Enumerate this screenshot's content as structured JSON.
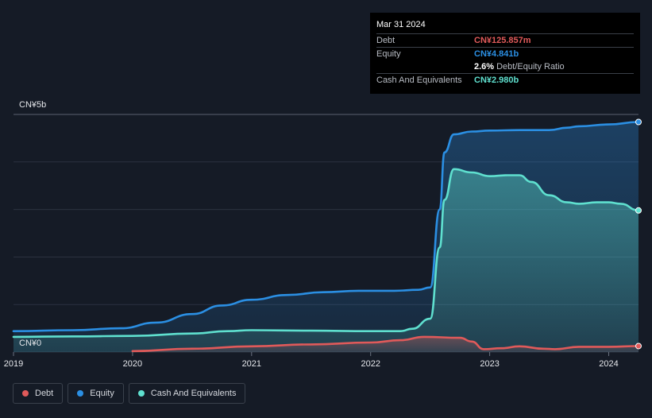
{
  "tooltip": {
    "date": "Mar 31 2024",
    "debt_label": "Debt",
    "debt_value": "CN¥125.857m",
    "equity_label": "Equity",
    "equity_value": "CN¥4.841b",
    "ratio_value": "2.6%",
    "ratio_label": "Debt/Equity Ratio",
    "cash_label": "Cash And Equivalents",
    "cash_value": "CN¥2.980b"
  },
  "legend": [
    {
      "label": "Debt",
      "color": "#e05a5a"
    },
    {
      "label": "Equity",
      "color": "#2b8fe3"
    },
    {
      "label": "Cash And Equivalents",
      "color": "#5fe0cf"
    }
  ],
  "colors": {
    "debt": "#e05a5a",
    "equity": "#2b8fe3",
    "cash": "#5fe0cf"
  },
  "chart_data": {
    "type": "area",
    "title": "",
    "xlabel": "",
    "ylabel": "",
    "y_top_label": "CN¥5b",
    "y_bottom_label": "CN¥0",
    "xlim": [
      2019,
      2024.25
    ],
    "ylim": [
      0,
      5
    ],
    "grid": true,
    "x_ticks": [
      {
        "value": 2019,
        "label": "2019"
      },
      {
        "value": 2020,
        "label": "2020"
      },
      {
        "value": 2021,
        "label": "2021"
      },
      {
        "value": 2022,
        "label": "2022"
      },
      {
        "value": 2023,
        "label": "2023"
      },
      {
        "value": 2024,
        "label": "2024"
      }
    ],
    "y_gridlines": [
      0,
      1,
      2,
      3,
      4,
      5
    ],
    "series": [
      {
        "key": "equity",
        "name": "Equity",
        "points": [
          [
            2019.0,
            0.44
          ],
          [
            2019.5,
            0.46
          ],
          [
            2019.9,
            0.5
          ],
          [
            2020.2,
            0.62
          ],
          [
            2020.5,
            0.8
          ],
          [
            2020.75,
            0.98
          ],
          [
            2021.0,
            1.1
          ],
          [
            2021.3,
            1.2
          ],
          [
            2021.6,
            1.26
          ],
          [
            2021.9,
            1.29
          ],
          [
            2022.2,
            1.29
          ],
          [
            2022.4,
            1.31
          ],
          [
            2022.5,
            1.36
          ],
          [
            2022.58,
            3.0
          ],
          [
            2022.62,
            4.2
          ],
          [
            2022.7,
            4.58
          ],
          [
            2022.85,
            4.64
          ],
          [
            2023.0,
            4.66
          ],
          [
            2023.25,
            4.67
          ],
          [
            2023.5,
            4.67
          ],
          [
            2023.65,
            4.72
          ],
          [
            2023.75,
            4.75
          ],
          [
            2024.0,
            4.79
          ],
          [
            2024.25,
            4.841
          ]
        ]
      },
      {
        "key": "cash",
        "name": "Cash And Equivalents",
        "points": [
          [
            2019.0,
            0.32
          ],
          [
            2019.5,
            0.33
          ],
          [
            2020.0,
            0.34
          ],
          [
            2020.5,
            0.39
          ],
          [
            2020.8,
            0.44
          ],
          [
            2021.0,
            0.46
          ],
          [
            2021.5,
            0.45
          ],
          [
            2022.0,
            0.44
          ],
          [
            2022.25,
            0.44
          ],
          [
            2022.35,
            0.49
          ],
          [
            2022.5,
            0.7
          ],
          [
            2022.58,
            2.2
          ],
          [
            2022.62,
            3.2
          ],
          [
            2022.7,
            3.85
          ],
          [
            2022.85,
            3.78
          ],
          [
            2023.0,
            3.7
          ],
          [
            2023.15,
            3.72
          ],
          [
            2023.25,
            3.72
          ],
          [
            2023.35,
            3.58
          ],
          [
            2023.5,
            3.3
          ],
          [
            2023.65,
            3.15
          ],
          [
            2023.75,
            3.12
          ],
          [
            2023.9,
            3.15
          ],
          [
            2024.0,
            3.15
          ],
          [
            2024.1,
            3.12
          ],
          [
            2024.25,
            2.98
          ]
        ]
      },
      {
        "key": "debt",
        "name": "Debt",
        "points": [
          [
            2020.0,
            0.02
          ],
          [
            2020.5,
            0.07
          ],
          [
            2021.0,
            0.12
          ],
          [
            2021.5,
            0.16
          ],
          [
            2022.0,
            0.2
          ],
          [
            2022.25,
            0.25
          ],
          [
            2022.45,
            0.32
          ],
          [
            2022.75,
            0.3
          ],
          [
            2022.85,
            0.22
          ],
          [
            2022.95,
            0.06
          ],
          [
            2023.1,
            0.08
          ],
          [
            2023.25,
            0.12
          ],
          [
            2023.45,
            0.07
          ],
          [
            2023.55,
            0.06
          ],
          [
            2023.75,
            0.11
          ],
          [
            2024.0,
            0.11
          ],
          [
            2024.25,
            0.126
          ]
        ]
      }
    ]
  }
}
